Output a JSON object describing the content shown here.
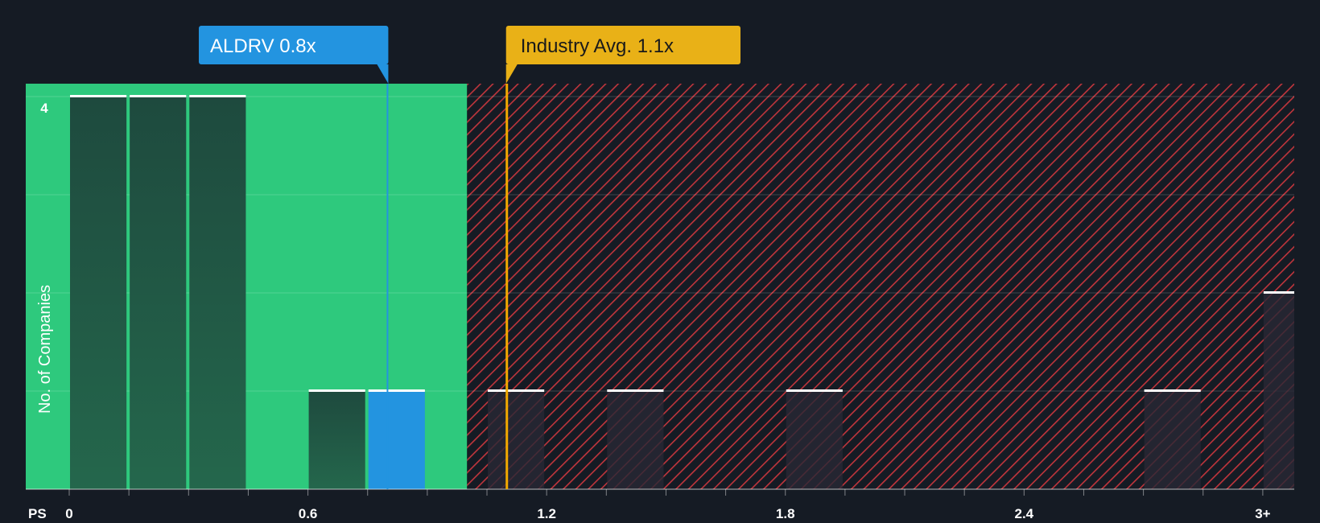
{
  "chart_data": {
    "type": "bar",
    "x_axis_label": "PS",
    "y_axis_label": "No. of Companies",
    "x_tick_labels": [
      "0",
      "0.6",
      "1.2",
      "1.8",
      "2.4",
      "3+"
    ],
    "x_ticks": [
      0,
      0.6,
      1.2,
      1.8,
      2.4,
      3.0
    ],
    "y_tick_labels": [
      "4"
    ],
    "y_ticks": [
      4
    ],
    "ylim": [
      0,
      4
    ],
    "bin_width": 0.15,
    "bins": [
      {
        "x": 0.0,
        "count": 4
      },
      {
        "x": 0.15,
        "count": 4
      },
      {
        "x": 0.3,
        "count": 4
      },
      {
        "x": 0.6,
        "count": 1
      },
      {
        "x": 0.75,
        "count": 1,
        "highlight": true
      },
      {
        "x": 1.05,
        "count": 1
      },
      {
        "x": 1.35,
        "count": 1
      },
      {
        "x": 1.8,
        "count": 1
      },
      {
        "x": 2.7,
        "count": 1
      },
      {
        "x": 3.0,
        "count": 2
      }
    ],
    "fair_zone_end": 1.0,
    "company": {
      "label": "ALDRV 0.8x",
      "value": 0.8
    },
    "industry": {
      "label": "Industry Avg. 1.1x",
      "value": 1.1
    }
  },
  "colors": {
    "background": "#151b24",
    "fair_zone": "#2ec97d",
    "over_zone_stripe": "#c0353c",
    "bar_dark": "#1e4a3e",
    "bar_highlight": "#2394e0",
    "bar_hatched": "#2a2b34",
    "company_line": "#2394e0",
    "industry_line": "#f2a900",
    "industry_callout": "#e9b117",
    "bar_cap": "#ffffff"
  }
}
